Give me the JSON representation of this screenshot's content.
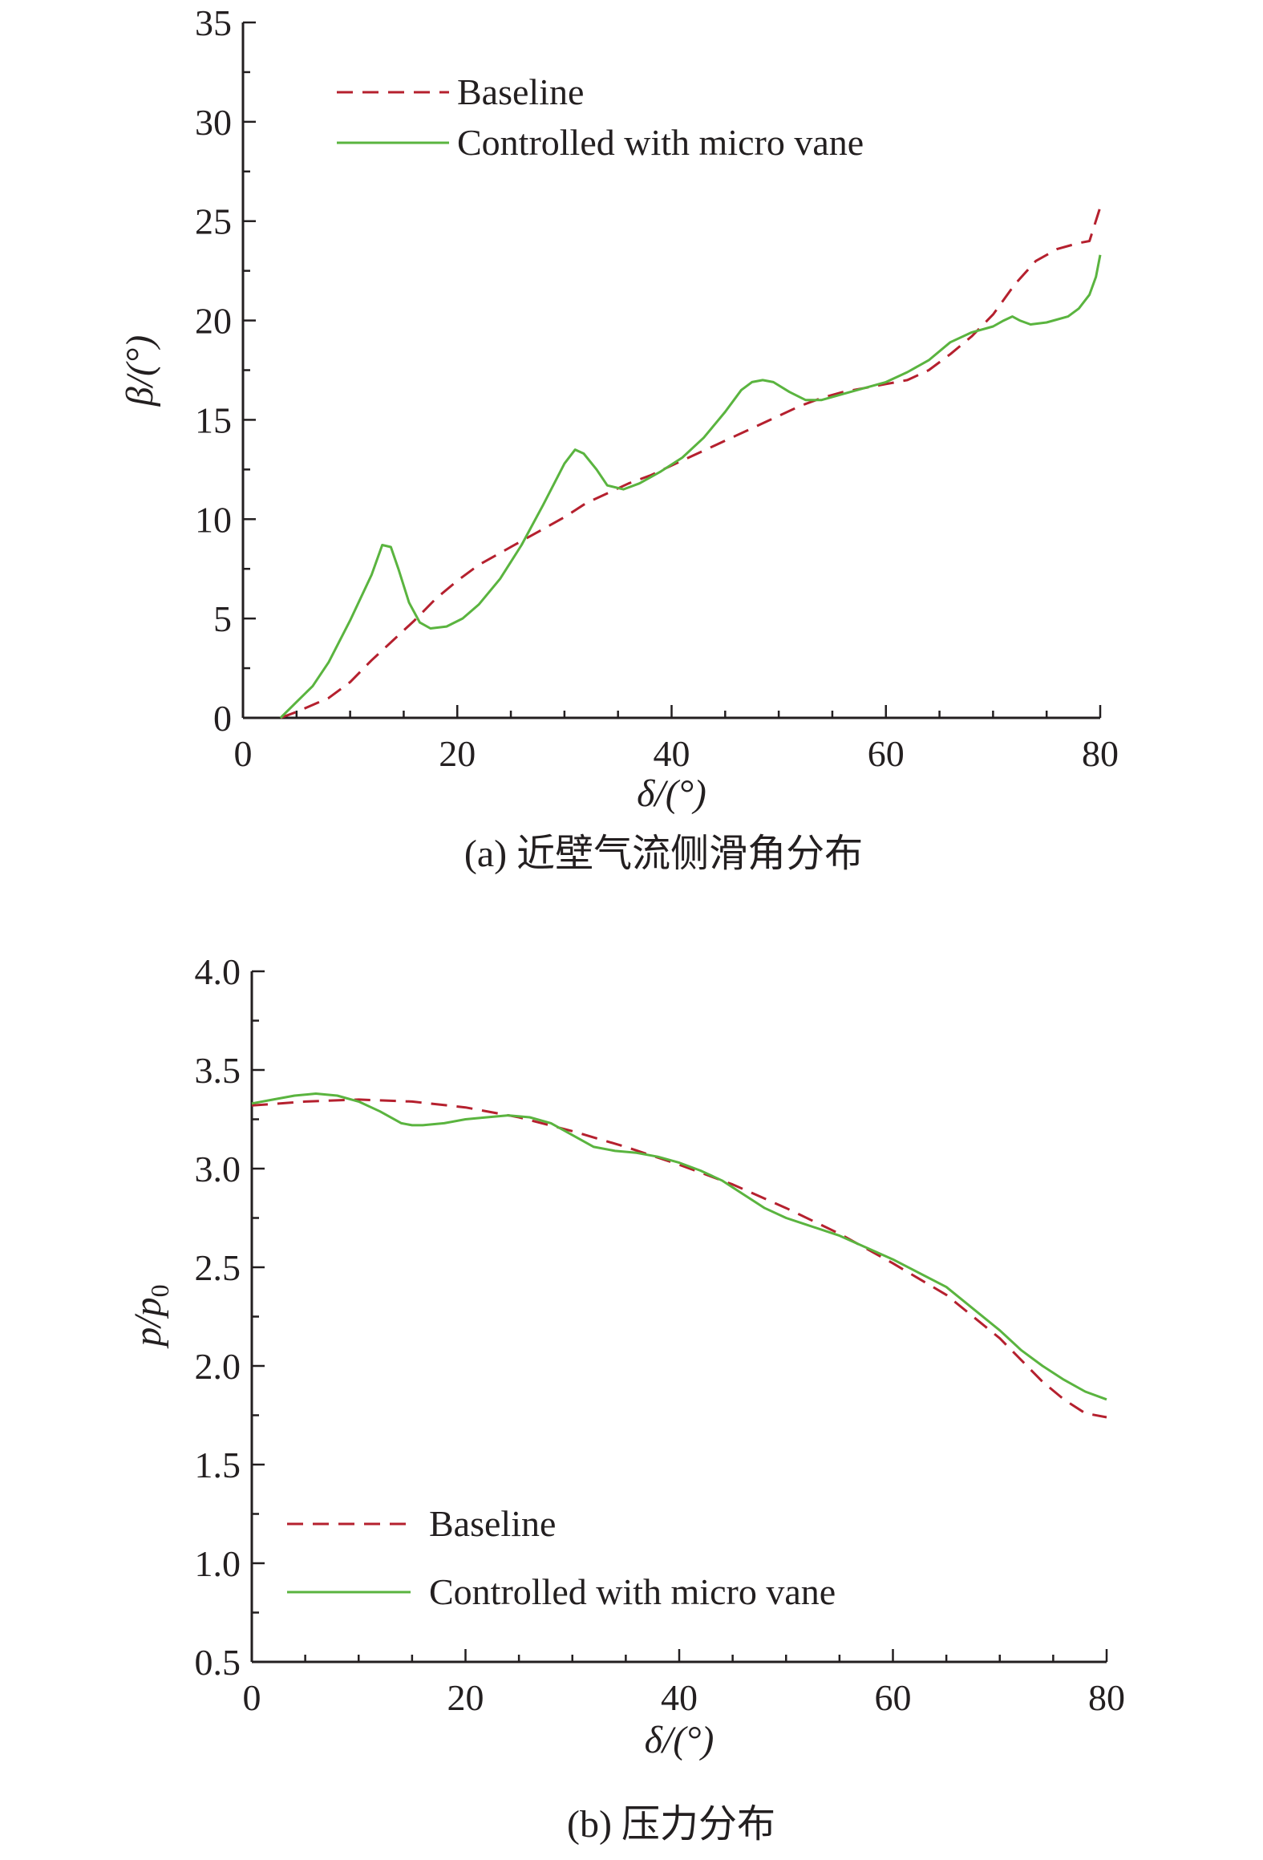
{
  "colors": {
    "baseline": "#b5202e",
    "controlled": "#5ab43f",
    "axis": "#231f20"
  },
  "chart_data": [
    {
      "type": "line",
      "caption": "(a) 近壁气流侧滑角分布",
      "xlabel": "δ/(°)",
      "ylabel": "β/(°)",
      "xlim": [
        0,
        80
      ],
      "ylim": [
        0,
        35
      ],
      "x_ticks": [
        "0",
        "20",
        "40",
        "60",
        "80"
      ],
      "y_ticks": [
        "0",
        "5",
        "10",
        "15",
        "20",
        "25",
        "30",
        "35"
      ],
      "legend_position": "top-left",
      "series": [
        {
          "name": "Baseline",
          "style": "dashed",
          "x": [
            3.5,
            5,
            8,
            10,
            12,
            14,
            16,
            18,
            20,
            22,
            24,
            26,
            28,
            30,
            32,
            34,
            36,
            38,
            40,
            42,
            44,
            46,
            48,
            50,
            52,
            54,
            56,
            58,
            60,
            62,
            64,
            66,
            68,
            70,
            72,
            74,
            76,
            78,
            79,
            80
          ],
          "y": [
            0,
            0.3,
            1.0,
            1.8,
            2.9,
            3.9,
            4.9,
            6.0,
            6.9,
            7.7,
            8.3,
            8.9,
            9.5,
            10.1,
            10.8,
            11.3,
            11.8,
            12.2,
            12.7,
            13.2,
            13.7,
            14.2,
            14.7,
            15.2,
            15.7,
            16.1,
            16.4,
            16.6,
            16.8,
            17.0,
            17.5,
            18.3,
            19.2,
            20.3,
            21.8,
            23.0,
            23.6,
            23.9,
            24.0,
            25.7
          ]
        },
        {
          "name": "Controlled with micro vane",
          "style": "solid",
          "x": [
            3.5,
            5,
            6.5,
            8,
            10,
            12,
            13,
            13.8,
            14.5,
            15.5,
            16.5,
            17.5,
            19,
            20.5,
            22,
            24,
            26,
            28,
            30,
            31,
            31.8,
            33,
            34,
            35.5,
            37,
            39,
            41,
            43,
            45,
            46.5,
            47.5,
            48.5,
            49.5,
            51,
            52.5,
            54,
            56,
            58,
            60,
            62,
            64,
            66,
            68,
            70,
            71,
            71.8,
            72.5,
            73.5,
            75,
            77,
            78,
            79,
            79.6,
            80
          ],
          "y": [
            0,
            0.8,
            1.6,
            2.8,
            4.9,
            7.2,
            8.7,
            8.6,
            7.5,
            5.8,
            4.8,
            4.5,
            4.6,
            5.0,
            5.7,
            7.0,
            8.7,
            10.7,
            12.8,
            13.5,
            13.3,
            12.5,
            11.7,
            11.5,
            11.8,
            12.4,
            13.1,
            14.1,
            15.4,
            16.5,
            16.9,
            17.0,
            16.9,
            16.4,
            16.0,
            16.0,
            16.3,
            16.6,
            16.9,
            17.4,
            18.0,
            18.9,
            19.4,
            19.7,
            20.0,
            20.2,
            20.0,
            19.8,
            19.9,
            20.2,
            20.6,
            21.3,
            22.2,
            23.3
          ]
        }
      ]
    },
    {
      "type": "line",
      "caption": "(b) 压力分布",
      "xlabel": "δ/(°)",
      "ylabel": "p/p",
      "ylabel_subscript": "0",
      "xlim": [
        0,
        80
      ],
      "ylim": [
        0.5,
        4.0
      ],
      "x_ticks": [
        "0",
        "20",
        "40",
        "60",
        "80"
      ],
      "y_ticks": [
        "0.5",
        "1.0",
        "1.5",
        "2.0",
        "2.5",
        "3.0",
        "3.5",
        "4.0"
      ],
      "legend_position": "bottom-left",
      "series": [
        {
          "name": "Baseline",
          "style": "dashed",
          "x": [
            0,
            5,
            10,
            15,
            20,
            25,
            30,
            35,
            40,
            45,
            50,
            55,
            60,
            65,
            70,
            72,
            74,
            76,
            78,
            80
          ],
          "y": [
            3.32,
            3.34,
            3.35,
            3.34,
            3.31,
            3.26,
            3.19,
            3.11,
            3.02,
            2.92,
            2.8,
            2.67,
            2.52,
            2.36,
            2.14,
            2.03,
            1.92,
            1.83,
            1.76,
            1.74
          ]
        },
        {
          "name": "Controlled with micro vane",
          "style": "solid",
          "x": [
            0,
            2,
            4,
            6,
            8,
            10,
            12,
            14,
            15,
            16,
            18,
            20,
            22,
            24,
            26,
            28,
            30,
            32,
            34,
            36,
            38,
            40,
            42,
            44,
            46,
            48,
            50,
            55,
            60,
            65,
            70,
            72,
            74,
            76,
            78,
            80
          ],
          "y": [
            3.33,
            3.35,
            3.37,
            3.38,
            3.37,
            3.34,
            3.29,
            3.23,
            3.22,
            3.22,
            3.23,
            3.25,
            3.26,
            3.27,
            3.26,
            3.23,
            3.17,
            3.11,
            3.09,
            3.08,
            3.06,
            3.03,
            2.99,
            2.94,
            2.87,
            2.8,
            2.75,
            2.66,
            2.54,
            2.4,
            2.18,
            2.08,
            2.0,
            1.93,
            1.87,
            1.83
          ]
        }
      ]
    }
  ]
}
